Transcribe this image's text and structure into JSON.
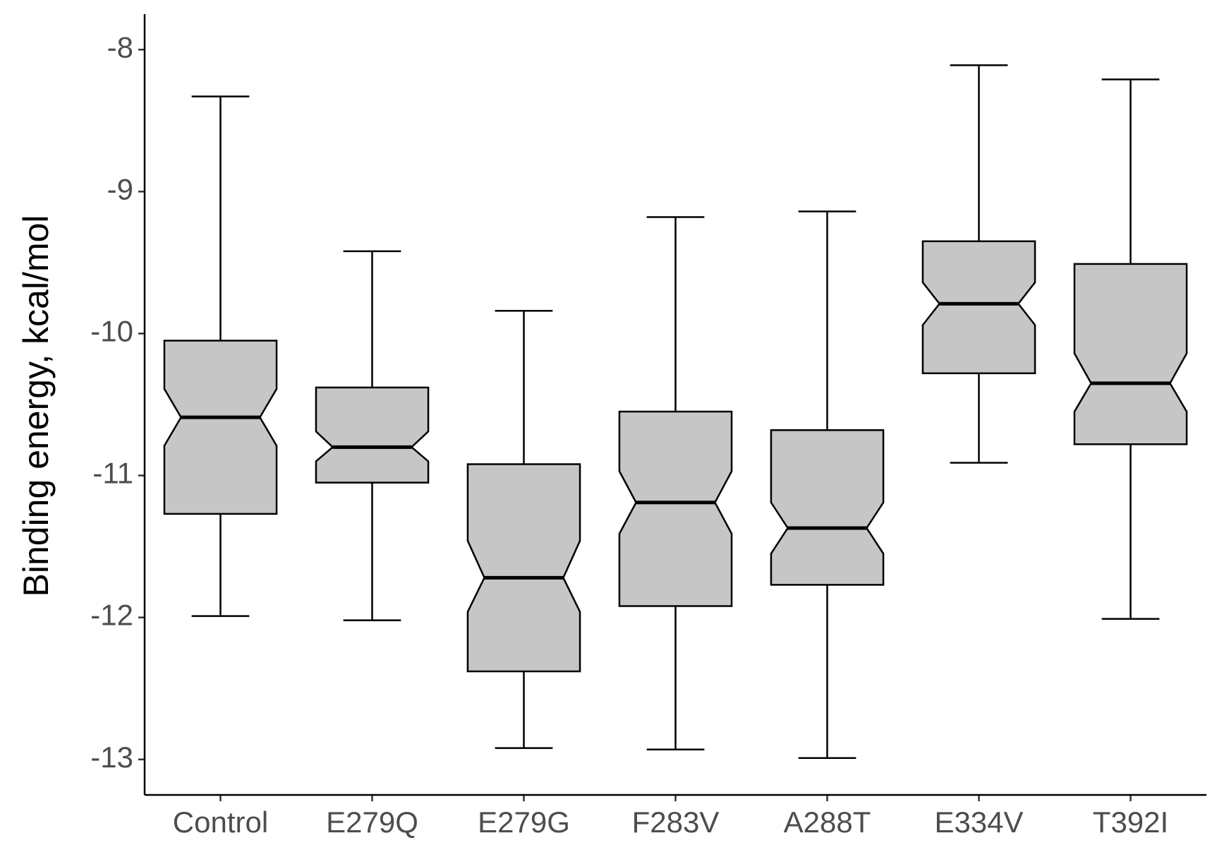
{
  "chart_data": {
    "type": "boxplot",
    "y_label": "Binding energy, kcal/mol",
    "categories": [
      "Control",
      "E279Q",
      "E279G",
      "F283V",
      "A288T",
      "E334V",
      "T392I"
    ],
    "whisker_high": [
      -8.33,
      -9.42,
      -9.84,
      -9.18,
      -9.14,
      -8.11,
      -8.21
    ],
    "q3": [
      -10.05,
      -10.38,
      -10.92,
      -10.55,
      -10.68,
      -9.35,
      -9.51
    ],
    "notch_high": [
      -10.39,
      -10.69,
      -11.46,
      -10.97,
      -11.19,
      -9.64,
      -10.14
    ],
    "median": [
      -10.59,
      -10.8,
      -11.72,
      -11.19,
      -11.37,
      -9.79,
      -10.35
    ],
    "notch_low": [
      -10.79,
      -10.9,
      -11.96,
      -11.41,
      -11.55,
      -9.94,
      -10.55
    ],
    "q1": [
      -11.27,
      -11.05,
      -12.38,
      -11.92,
      -11.77,
      -10.28,
      -10.78
    ],
    "whisker_low": [
      -11.99,
      -12.02,
      -12.92,
      -12.93,
      -12.99,
      -10.91,
      -12.01
    ],
    "color": "#c6c6c6",
    "ylim": [
      -13.25,
      -7.75
    ],
    "yticks": [
      -13,
      -12,
      -11,
      -10,
      -9,
      -8
    ]
  }
}
